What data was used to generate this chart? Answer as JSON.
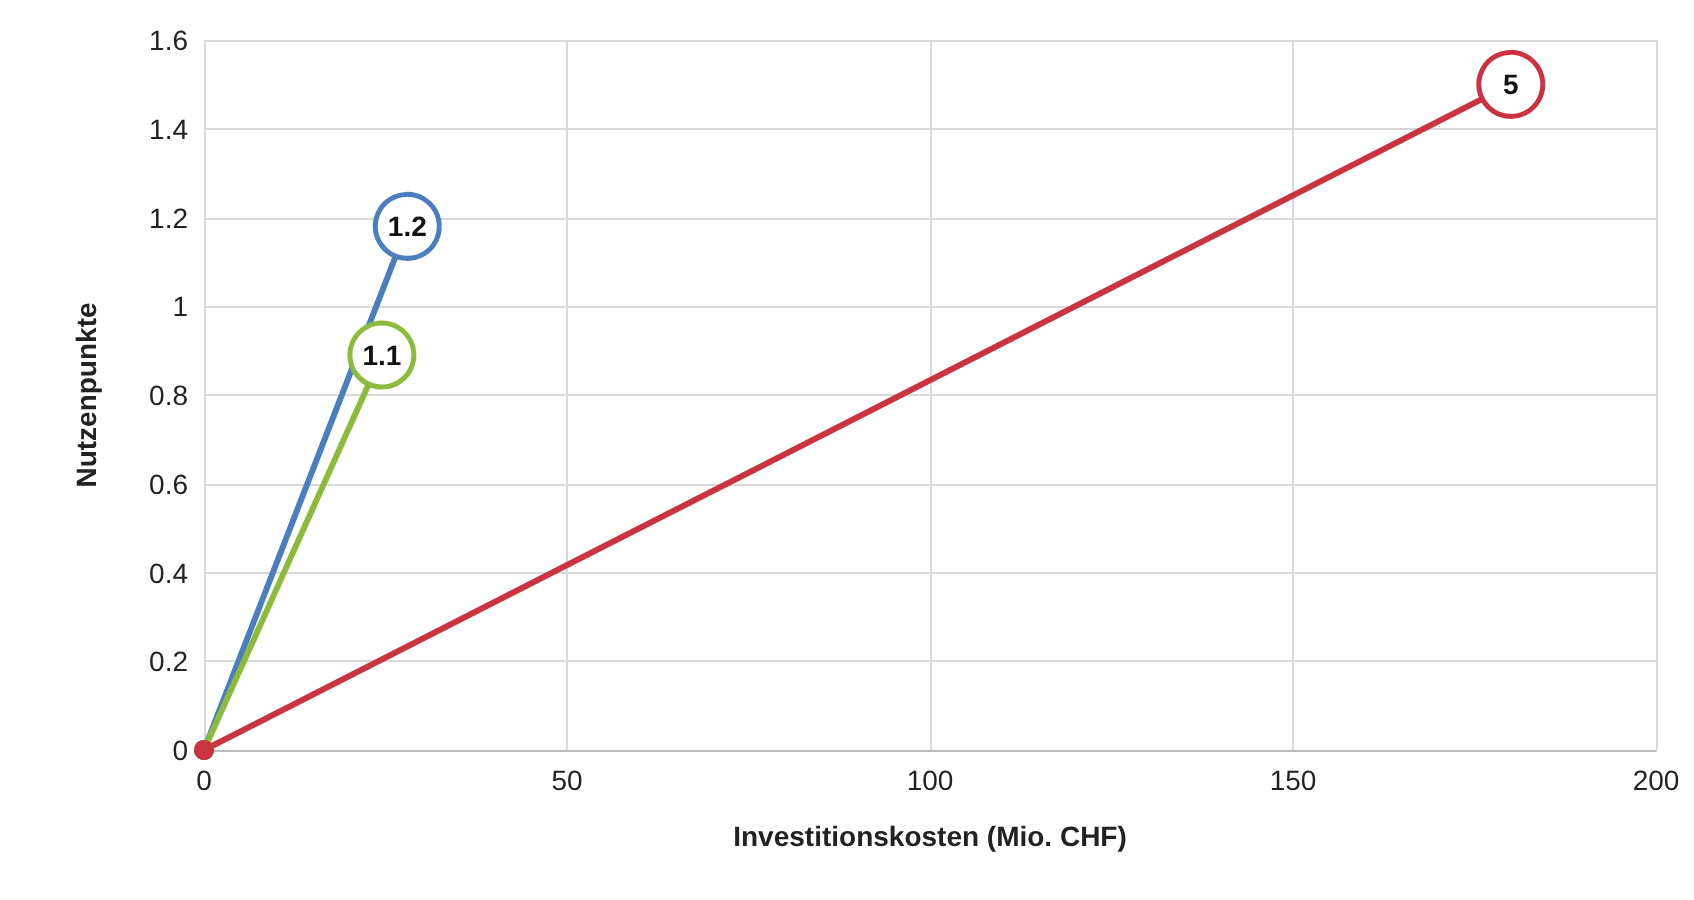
{
  "chart_data": {
    "type": "line",
    "xlabel": "Investitionskosten (Mio. CHF)",
    "ylabel": "Nutzenpunkte",
    "xlim": [
      0,
      200
    ],
    "xticks": [
      0,
      50,
      100,
      150,
      200
    ],
    "ylim": [
      0,
      1.6
    ],
    "yticks": [
      0,
      0.2,
      0.4,
      0.6,
      0.8,
      1,
      1.2,
      1.4,
      1.6
    ],
    "grid": true,
    "legend": false,
    "marker": "circle",
    "line_style": "solid",
    "series": [
      {
        "name": "1.2",
        "color": "#4a7ebf",
        "x": [
          0,
          28
        ],
        "values": [
          0,
          1.18
        ]
      },
      {
        "name": "1.1",
        "color": "#8cbb3c",
        "x": [
          0,
          24.5
        ],
        "values": [
          0,
          0.89
        ]
      },
      {
        "name": "5",
        "color": "#cc3340",
        "x": [
          0,
          180
        ],
        "values": [
          0,
          1.5
        ]
      }
    ]
  }
}
